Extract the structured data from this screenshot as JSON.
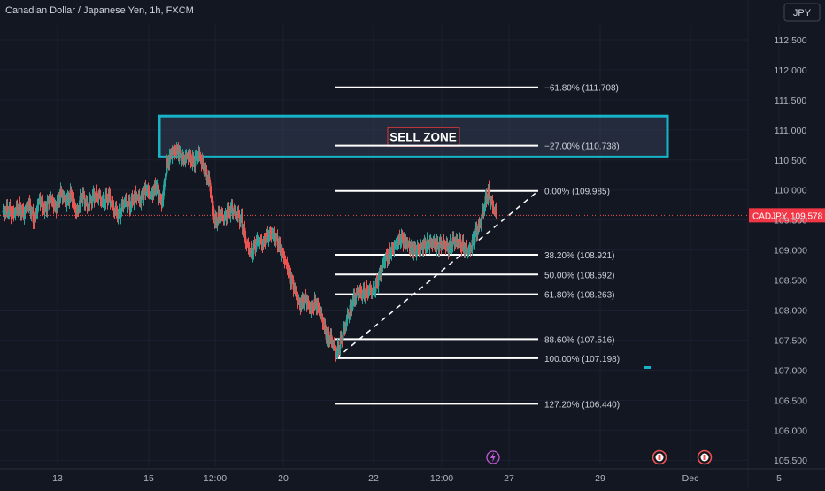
{
  "header": {
    "title": "Canadian Dollar / Japanese Yen, 1h, FXCM",
    "currency_button": "JPY"
  },
  "chart_data": {
    "type": "candlestick",
    "symbol": "CADJPY",
    "last_price": "109.578",
    "y_range": [
      105.4,
      112.75
    ],
    "y_ticks": [
      "112.500",
      "112.000",
      "111.500",
      "111.000",
      "110.500",
      "110.000",
      "109.500",
      "109.000",
      "108.500",
      "108.000",
      "107.500",
      "107.000",
      "106.500",
      "106.000",
      "105.500"
    ],
    "x_ticks": [
      "13",
      "15",
      "12:00",
      "20",
      "22",
      "12:00",
      "27",
      "29",
      "Dec",
      "5"
    ],
    "sell_zone": {
      "label": "SELL ZONE",
      "top_price": 111.23,
      "bottom_price": 110.55
    },
    "fib_levels": [
      {
        "ratio": "−61.80%",
        "price": 111.708,
        "label": "−61.80% (111.708)"
      },
      {
        "ratio": "−27.00%",
        "price": 110.738,
        "label": "−27.00% (110.738)"
      },
      {
        "ratio": "0.00%",
        "price": 109.985,
        "label": "0.00% (109.985)"
      },
      {
        "ratio": "38.20%",
        "price": 108.921,
        "label": "38.20% (108.921)"
      },
      {
        "ratio": "50.00%",
        "price": 108.592,
        "label": "50.00% (108.592)"
      },
      {
        "ratio": "61.80%",
        "price": 108.263,
        "label": "61.80% (108.263)"
      },
      {
        "ratio": "88.60%",
        "price": 107.516,
        "label": "88.60% (107.516)"
      },
      {
        "ratio": "100.00%",
        "price": 107.198,
        "label": "100.00% (107.198)"
      },
      {
        "ratio": "127.20%",
        "price": 106.44,
        "label": "127.20% (106.440)"
      }
    ],
    "trendline": {
      "from_price": 107.198,
      "to_price": 109.985
    },
    "series_path": [
      [
        0,
        109.62
      ],
      [
        6,
        109.67
      ],
      [
        12,
        109.59
      ],
      [
        18,
        109.72
      ],
      [
        24,
        109.6
      ],
      [
        30,
        109.77
      ],
      [
        36,
        109.48
      ],
      [
        42,
        109.85
      ],
      [
        48,
        109.66
      ],
      [
        54,
        109.88
      ],
      [
        60,
        109.69
      ],
      [
        66,
        109.95
      ],
      [
        72,
        109.8
      ],
      [
        78,
        109.93
      ],
      [
        84,
        109.6
      ],
      [
        90,
        109.93
      ],
      [
        96,
        109.72
      ],
      [
        102,
        109.88
      ],
      [
        108,
        109.91
      ],
      [
        114,
        109.79
      ],
      [
        120,
        109.9
      ],
      [
        126,
        109.68
      ],
      [
        132,
        109.58
      ],
      [
        138,
        109.82
      ],
      [
        144,
        109.73
      ],
      [
        150,
        109.92
      ],
      [
        156,
        109.83
      ],
      [
        162,
        110.02
      ],
      [
        168,
        109.9
      ],
      [
        174,
        110.08
      ],
      [
        180,
        109.76
      ],
      [
        186,
        110.43
      ],
      [
        192,
        110.64
      ],
      [
        198,
        110.66
      ],
      [
        204,
        110.5
      ],
      [
        210,
        110.58
      ],
      [
        216,
        110.45
      ],
      [
        222,
        110.6
      ],
      [
        228,
        110.35
      ],
      [
        234,
        110.12
      ],
      [
        240,
        109.45
      ],
      [
        246,
        109.58
      ],
      [
        252,
        109.53
      ],
      [
        258,
        109.69
      ],
      [
        264,
        109.62
      ],
      [
        270,
        109.5
      ],
      [
        276,
        109.08
      ],
      [
        282,
        108.95
      ],
      [
        288,
        109.18
      ],
      [
        294,
        109.1
      ],
      [
        300,
        109.24
      ],
      [
        306,
        109.28
      ],
      [
        312,
        109.1
      ],
      [
        318,
        108.88
      ],
      [
        324,
        108.62
      ],
      [
        330,
        108.35
      ],
      [
        336,
        108.08
      ],
      [
        342,
        108.2
      ],
      [
        348,
        108.02
      ],
      [
        354,
        108.12
      ],
      [
        360,
        107.92
      ],
      [
        366,
        107.6
      ],
      [
        372,
        107.5
      ],
      [
        378,
        107.28
      ],
      [
        384,
        107.55
      ],
      [
        390,
        107.88
      ],
      [
        396,
        108.15
      ],
      [
        402,
        108.3
      ],
      [
        408,
        108.27
      ],
      [
        414,
        108.33
      ],
      [
        420,
        108.32
      ],
      [
        426,
        108.58
      ],
      [
        432,
        108.85
      ],
      [
        438,
        108.95
      ],
      [
        444,
        109.08
      ],
      [
        450,
        109.2
      ],
      [
        456,
        109.13
      ],
      [
        462,
        109.02
      ],
      [
        468,
        109.0
      ],
      [
        474,
        109.05
      ],
      [
        480,
        109.1
      ],
      [
        486,
        109.12
      ],
      [
        492,
        109.06
      ],
      [
        498,
        109.12
      ],
      [
        504,
        109.03
      ],
      [
        510,
        109.15
      ],
      [
        516,
        109.12
      ],
      [
        522,
        109.03
      ],
      [
        528,
        108.98
      ],
      [
        534,
        109.25
      ],
      [
        540,
        109.45
      ],
      [
        546,
        109.82
      ],
      [
        549,
        109.96
      ],
      [
        552,
        109.8
      ],
      [
        555,
        109.7
      ],
      [
        558,
        109.58
      ]
    ]
  }
}
